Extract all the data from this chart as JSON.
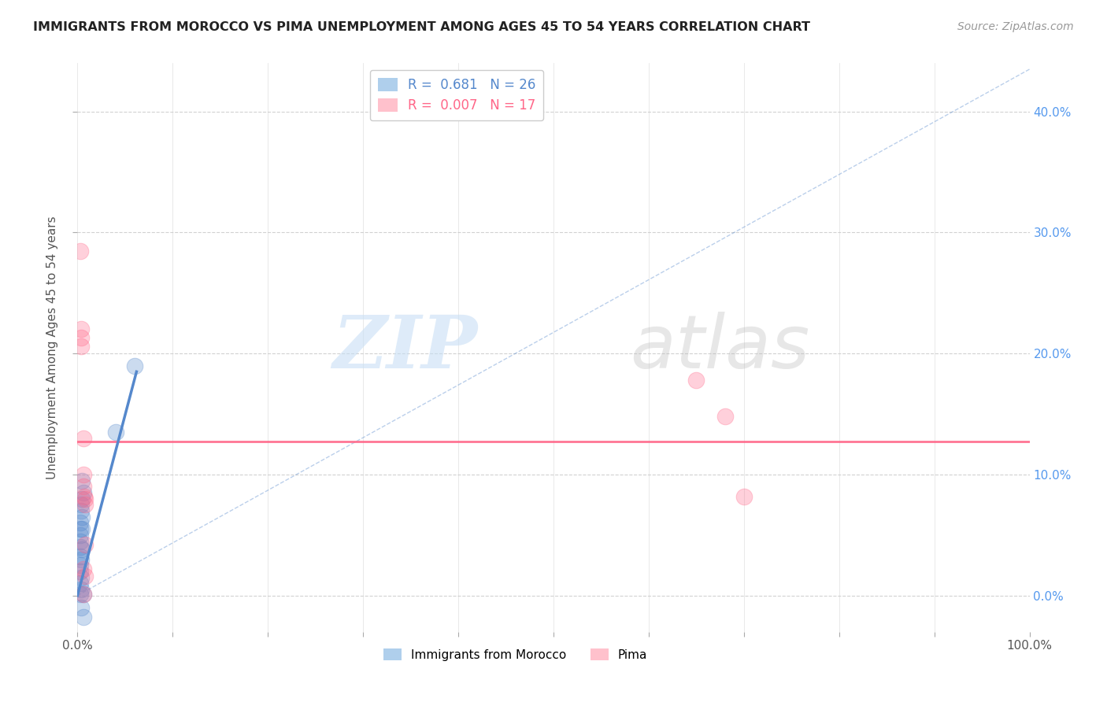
{
  "title": "IMMIGRANTS FROM MOROCCO VS PIMA UNEMPLOYMENT AMONG AGES 45 TO 54 YEARS CORRELATION CHART",
  "source": "Source: ZipAtlas.com",
  "ylabel": "Unemployment Among Ages 45 to 54 years",
  "xlabel_ticks": [
    "0.0%",
    "",
    "",
    "",
    "",
    "",
    "",
    "",
    "",
    "",
    "100.0%"
  ],
  "ylabel_ticks_right": [
    "0.0%",
    "10.0%",
    "20.0%",
    "30.0%",
    "40.0%"
  ],
  "xlim": [
    0,
    1.0
  ],
  "ylim": [
    -0.03,
    0.44
  ],
  "y_tick_vals": [
    0.0,
    0.1,
    0.2,
    0.3,
    0.4
  ],
  "x_tick_vals": [
    0.0,
    0.1,
    0.2,
    0.3,
    0.4,
    0.5,
    0.6,
    0.7,
    0.8,
    0.9,
    1.0
  ],
  "legend1_R": "0.681",
  "legend1_N": "26",
  "legend2_R": "0.007",
  "legend2_N": "17",
  "legend_color1": "#7ab0e0",
  "legend_color2": "#ff99aa",
  "blue_color": "#5588cc",
  "pink_color": "#ff6688",
  "blue_dots": [
    [
      0.005,
      0.095
    ],
    [
      0.006,
      0.085
    ],
    [
      0.005,
      0.08
    ],
    [
      0.004,
      0.075
    ],
    [
      0.004,
      0.07
    ],
    [
      0.005,
      0.065
    ],
    [
      0.003,
      0.06
    ],
    [
      0.003,
      0.055
    ],
    [
      0.005,
      0.055
    ],
    [
      0.003,
      0.05
    ],
    [
      0.003,
      0.045
    ],
    [
      0.003,
      0.04
    ],
    [
      0.005,
      0.038
    ],
    [
      0.003,
      0.032
    ],
    [
      0.004,
      0.03
    ],
    [
      0.003,
      0.025
    ],
    [
      0.003,
      0.02
    ],
    [
      0.004,
      0.015
    ],
    [
      0.003,
      0.01
    ],
    [
      0.004,
      0.005
    ],
    [
      0.006,
      0.001
    ],
    [
      0.003,
      0.001
    ],
    [
      0.004,
      -0.01
    ],
    [
      0.006,
      -0.018
    ],
    [
      0.06,
      0.19
    ],
    [
      0.04,
      0.135
    ]
  ],
  "pink_dots": [
    [
      0.003,
      0.285
    ],
    [
      0.004,
      0.22
    ],
    [
      0.004,
      0.213
    ],
    [
      0.004,
      0.206
    ],
    [
      0.006,
      0.13
    ],
    [
      0.006,
      0.1
    ],
    [
      0.006,
      0.09
    ],
    [
      0.008,
      0.08
    ],
    [
      0.008,
      0.075
    ],
    [
      0.006,
      0.022
    ],
    [
      0.008,
      0.016
    ],
    [
      0.006,
      0.001
    ],
    [
      0.65,
      0.178
    ],
    [
      0.68,
      0.148
    ],
    [
      0.7,
      0.082
    ],
    [
      0.007,
      0.082
    ],
    [
      0.008,
      0.042
    ]
  ],
  "blue_line_x": [
    0.0,
    0.062
  ],
  "blue_line_y": [
    0.0,
    0.185
  ],
  "pink_line_y": 0.127,
  "dashed_line_x": [
    0.0,
    1.0
  ],
  "dashed_line_y": [
    0.0,
    0.435
  ],
  "background_color": "#ffffff",
  "grid_color": "#cccccc",
  "title_color": "#222222",
  "right_tick_color": "#5599ee",
  "watermark_zip_color": "#c8dff5",
  "watermark_atlas_color": "#bbbbbb"
}
